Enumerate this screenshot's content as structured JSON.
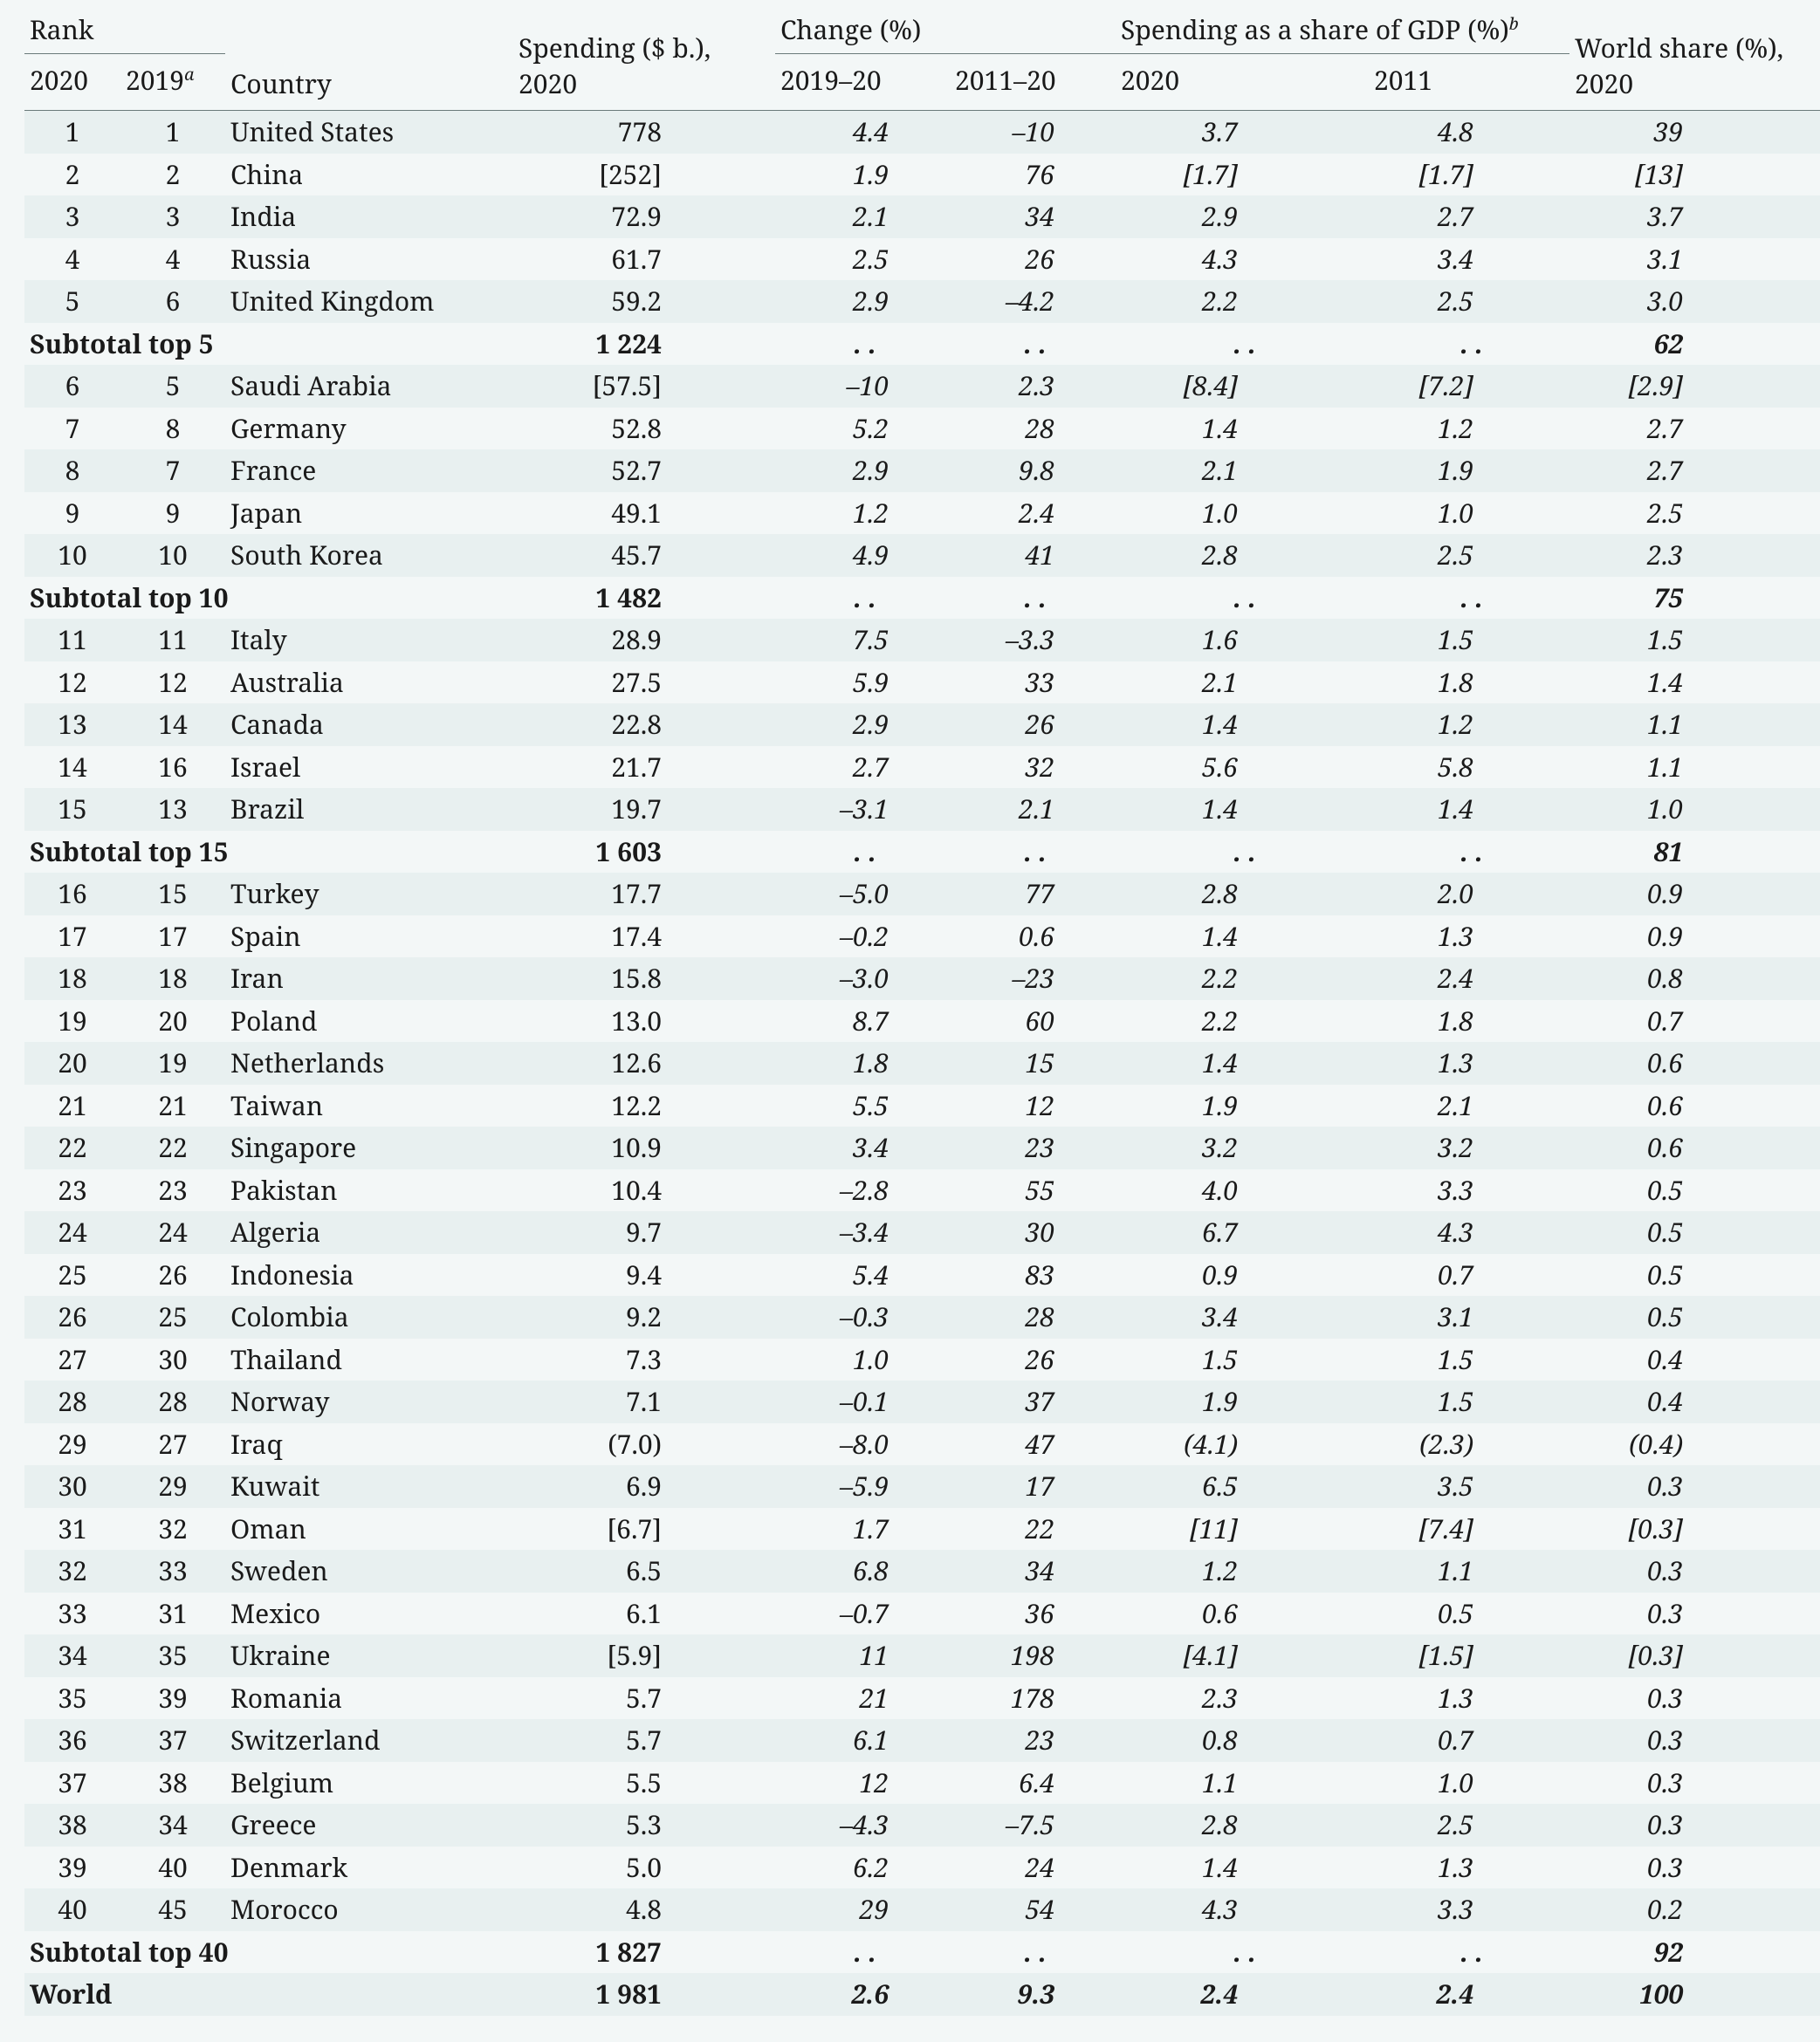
{
  "colors": {
    "background": "#f3f7f7",
    "row_tint": "#e8f0f0",
    "rule": "#6a7a7a",
    "text": "#1a1a1a"
  },
  "typography": {
    "family": "serif",
    "base_size_pt": 22,
    "italic_columns": [
      "change_2019_20",
      "change_2011_20",
      "gdp_2020",
      "gdp_2011",
      "world_share"
    ]
  },
  "table": {
    "type": "table",
    "header": {
      "rank_group": "Rank",
      "rank_2020": "2020",
      "rank_2019": "2019",
      "rank_2019_sup": "a",
      "country": "Country",
      "spending_line1": "Spending ($ b.),",
      "spending_line2": "2020",
      "change_group": "Change (%)",
      "change_2019_20": "2019–20",
      "change_2011_20": "2011–20",
      "gdp_group": "Spending as a share of GDP (%)",
      "gdp_group_sup": "b",
      "gdp_2020": "2020",
      "gdp_2011": "2011",
      "world_share_line1": "World share (%),",
      "world_share_line2": "2020"
    },
    "columns": [
      "rank_2020",
      "rank_2019",
      "country",
      "spending",
      "change_2019_20",
      "change_2011_20",
      "gdp_2020",
      "gdp_2011",
      "world_share"
    ],
    "rows": [
      {
        "r20": "1",
        "r19": "1",
        "country": "United States",
        "spend": "778",
        "c1": "4.4",
        "c2": "–10",
        "g20": "3.7",
        "g11": "4.8",
        "ws": "39"
      },
      {
        "r20": "2",
        "r19": "2",
        "country": "China",
        "spend": "[252]",
        "c1": "1.9",
        "c2": "76",
        "g20": "[1.7]",
        "g11": "[1.7]",
        "ws": "[13]"
      },
      {
        "r20": "3",
        "r19": "3",
        "country": "India",
        "spend": "72.9",
        "c1": "2.1",
        "c2": "34",
        "g20": "2.9",
        "g11": "2.7",
        "ws": "3.7"
      },
      {
        "r20": "4",
        "r19": "4",
        "country": "Russia",
        "spend": "61.7",
        "c1": "2.5",
        "c2": "26",
        "g20": "4.3",
        "g11": "3.4",
        "ws": "3.1"
      },
      {
        "r20": "5",
        "r19": "6",
        "country": "United Kingdom",
        "spend": "59.2",
        "c1": "2.9",
        "c2": "–4.2",
        "g20": "2.2",
        "g11": "2.5",
        "ws": "3.0"
      },
      {
        "subtotal": true,
        "label": "Subtotal top 5",
        "spend": "1 224",
        "ws": "62"
      },
      {
        "r20": "6",
        "r19": "5",
        "country": "Saudi Arabia",
        "spend": "[57.5]",
        "c1": "–10",
        "c2": "2.3",
        "g20": "[8.4]",
        "g11": "[7.2]",
        "ws": "[2.9]"
      },
      {
        "r20": "7",
        "r19": "8",
        "country": "Germany",
        "spend": "52.8",
        "c1": "5.2",
        "c2": "28",
        "g20": "1.4",
        "g11": "1.2",
        "ws": "2.7"
      },
      {
        "r20": "8",
        "r19": "7",
        "country": "France",
        "spend": "52.7",
        "c1": "2.9",
        "c2": "9.8",
        "g20": "2.1",
        "g11": "1.9",
        "ws": "2.7"
      },
      {
        "r20": "9",
        "r19": "9",
        "country": "Japan",
        "spend": "49.1",
        "c1": "1.2",
        "c2": "2.4",
        "g20": "1.0",
        "g11": "1.0",
        "ws": "2.5"
      },
      {
        "r20": "10",
        "r19": "10",
        "country": "South Korea",
        "spend": "45.7",
        "c1": "4.9",
        "c2": "41",
        "g20": "2.8",
        "g11": "2.5",
        "ws": "2.3"
      },
      {
        "subtotal": true,
        "label": "Subtotal top 10",
        "spend": "1 482",
        "ws": "75"
      },
      {
        "r20": "11",
        "r19": "11",
        "country": "Italy",
        "spend": "28.9",
        "c1": "7.5",
        "c2": "–3.3",
        "g20": "1.6",
        "g11": "1.5",
        "ws": "1.5"
      },
      {
        "r20": "12",
        "r19": "12",
        "country": "Australia",
        "spend": "27.5",
        "c1": "5.9",
        "c2": "33",
        "g20": "2.1",
        "g11": "1.8",
        "ws": "1.4"
      },
      {
        "r20": "13",
        "r19": "14",
        "country": "Canada",
        "spend": "22.8",
        "c1": "2.9",
        "c2": "26",
        "g20": "1.4",
        "g11": "1.2",
        "ws": "1.1"
      },
      {
        "r20": "14",
        "r19": "16",
        "country": "Israel",
        "spend": "21.7",
        "c1": "2.7",
        "c2": "32",
        "g20": "5.6",
        "g11": "5.8",
        "ws": "1.1"
      },
      {
        "r20": "15",
        "r19": "13",
        "country": "Brazil",
        "spend": "19.7",
        "c1": "–3.1",
        "c2": "2.1",
        "g20": "1.4",
        "g11": "1.4",
        "ws": "1.0"
      },
      {
        "subtotal": true,
        "label": "Subtotal top 15",
        "spend": "1 603",
        "ws": "81"
      },
      {
        "r20": "16",
        "r19": "15",
        "country": "Turkey",
        "spend": "17.7",
        "c1": "–5.0",
        "c2": "77",
        "g20": "2.8",
        "g11": "2.0",
        "ws": "0.9"
      },
      {
        "r20": "17",
        "r19": "17",
        "country": "Spain",
        "spend": "17.4",
        "c1": "–0.2",
        "c2": "0.6",
        "g20": "1.4",
        "g11": "1.3",
        "ws": "0.9"
      },
      {
        "r20": "18",
        "r19": "18",
        "country": "Iran",
        "spend": "15.8",
        "c1": "–3.0",
        "c2": "–23",
        "g20": "2.2",
        "g11": "2.4",
        "ws": "0.8"
      },
      {
        "r20": "19",
        "r19": "20",
        "country": "Poland",
        "spend": "13.0",
        "c1": "8.7",
        "c2": "60",
        "g20": "2.2",
        "g11": "1.8",
        "ws": "0.7"
      },
      {
        "r20": "20",
        "r19": "19",
        "country": "Netherlands",
        "spend": "12.6",
        "c1": "1.8",
        "c2": "15",
        "g20": "1.4",
        "g11": "1.3",
        "ws": "0.6"
      },
      {
        "r20": "21",
        "r19": "21",
        "country": "Taiwan",
        "spend": "12.2",
        "c1": "5.5",
        "c2": "12",
        "g20": "1.9",
        "g11": "2.1",
        "ws": "0.6"
      },
      {
        "r20": "22",
        "r19": "22",
        "country": "Singapore",
        "spend": "10.9",
        "c1": "3.4",
        "c2": "23",
        "g20": "3.2",
        "g11": "3.2",
        "ws": "0.6"
      },
      {
        "r20": "23",
        "r19": "23",
        "country": "Pakistan",
        "spend": "10.4",
        "c1": "–2.8",
        "c2": "55",
        "g20": "4.0",
        "g11": "3.3",
        "ws": "0.5"
      },
      {
        "r20": "24",
        "r19": "24",
        "country": "Algeria",
        "spend": "9.7",
        "c1": "–3.4",
        "c2": "30",
        "g20": "6.7",
        "g11": "4.3",
        "ws": "0.5"
      },
      {
        "r20": "25",
        "r19": "26",
        "country": "Indonesia",
        "spend": "9.4",
        "c1": "5.4",
        "c2": "83",
        "g20": "0.9",
        "g11": "0.7",
        "ws": "0.5"
      },
      {
        "r20": "26",
        "r19": "25",
        "country": "Colombia",
        "spend": "9.2",
        "c1": "–0.3",
        "c2": "28",
        "g20": "3.4",
        "g11": "3.1",
        "ws": "0.5"
      },
      {
        "r20": "27",
        "r19": "30",
        "country": "Thailand",
        "spend": "7.3",
        "c1": "1.0",
        "c2": "26",
        "g20": "1.5",
        "g11": "1.5",
        "ws": "0.4"
      },
      {
        "r20": "28",
        "r19": "28",
        "country": "Norway",
        "spend": "7.1",
        "c1": "–0.1",
        "c2": "37",
        "g20": "1.9",
        "g11": "1.5",
        "ws": "0.4"
      },
      {
        "r20": "29",
        "r19": "27",
        "country": "Iraq",
        "spend": "(7.0)",
        "c1": "–8.0",
        "c2": "47",
        "g20": "(4.1)",
        "g11": "(2.3)",
        "ws": "(0.4)"
      },
      {
        "r20": "30",
        "r19": "29",
        "country": "Kuwait",
        "spend": "6.9",
        "c1": "–5.9",
        "c2": "17",
        "g20": "6.5",
        "g11": "3.5",
        "ws": "0.3"
      },
      {
        "r20": "31",
        "r19": "32",
        "country": "Oman",
        "spend": "[6.7]",
        "c1": "1.7",
        "c2": "22",
        "g20": "[11]",
        "g11": "[7.4]",
        "ws": "[0.3]"
      },
      {
        "r20": "32",
        "r19": "33",
        "country": "Sweden",
        "spend": "6.5",
        "c1": "6.8",
        "c2": "34",
        "g20": "1.2",
        "g11": "1.1",
        "ws": "0.3"
      },
      {
        "r20": "33",
        "r19": "31",
        "country": "Mexico",
        "spend": "6.1",
        "c1": "–0.7",
        "c2": "36",
        "g20": "0.6",
        "g11": "0.5",
        "ws": "0.3"
      },
      {
        "r20": "34",
        "r19": "35",
        "country": "Ukraine",
        "spend": "[5.9]",
        "c1": "11",
        "c2": "198",
        "g20": "[4.1]",
        "g11": "[1.5]",
        "ws": "[0.3]"
      },
      {
        "r20": "35",
        "r19": "39",
        "country": "Romania",
        "spend": "5.7",
        "c1": "21",
        "c2": "178",
        "g20": "2.3",
        "g11": "1.3",
        "ws": "0.3"
      },
      {
        "r20": "36",
        "r19": "37",
        "country": "Switzerland",
        "spend": "5.7",
        "c1": "6.1",
        "c2": "23",
        "g20": "0.8",
        "g11": "0.7",
        "ws": "0.3"
      },
      {
        "r20": "37",
        "r19": "38",
        "country": "Belgium",
        "spend": "5.5",
        "c1": "12",
        "c2": "6.4",
        "g20": "1.1",
        "g11": "1.0",
        "ws": "0.3"
      },
      {
        "r20": "38",
        "r19": "34",
        "country": "Greece",
        "spend": "5.3",
        "c1": "–4.3",
        "c2": "–7.5",
        "g20": "2.8",
        "g11": "2.5",
        "ws": "0.3"
      },
      {
        "r20": "39",
        "r19": "40",
        "country": "Denmark",
        "spend": "5.0",
        "c1": "6.2",
        "c2": "24",
        "g20": "1.4",
        "g11": "1.3",
        "ws": "0.3"
      },
      {
        "r20": "40",
        "r19": "45",
        "country": "Morocco",
        "spend": "4.8",
        "c1": "29",
        "c2": "54",
        "g20": "4.3",
        "g11": "3.3",
        "ws": "0.2"
      },
      {
        "subtotal": true,
        "label": "Subtotal top 40",
        "spend": "1 827",
        "ws": "92"
      },
      {
        "world": true,
        "label": "World",
        "spend": "1 981",
        "c1": "2.6",
        "c2": "9.3",
        "g20": "2.4",
        "g11": "2.4",
        "ws": "100"
      }
    ],
    "dots": ". ."
  }
}
